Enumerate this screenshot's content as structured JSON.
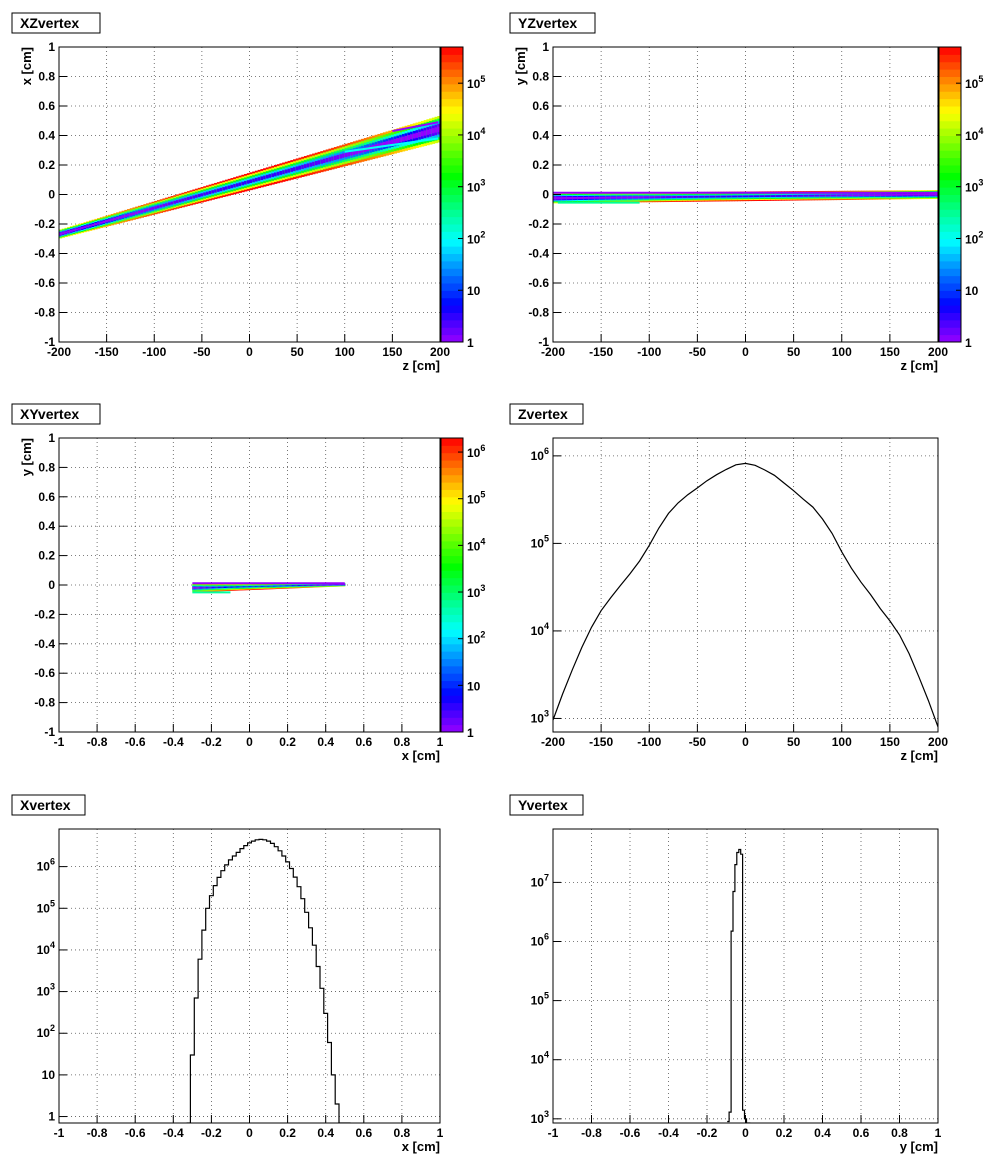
{
  "chart_data": [
    {
      "type": "heatmap",
      "title": "XZvertex",
      "xlabel": "z [cm]",
      "ylabel": "x [cm]",
      "xlim": [
        -200,
        200
      ],
      "ylim": [
        -1,
        1
      ],
      "x_ticks": [
        "-200",
        "-150",
        "-100",
        "-50",
        "0",
        "50",
        "100",
        "150",
        "200"
      ],
      "y_ticks": [
        "-1",
        "-0.8",
        "-0.6",
        "-0.4",
        "-0.2",
        "0",
        "0.2",
        "0.4",
        "0.6",
        "0.8",
        "1"
      ],
      "grid": true,
      "colorbar": {
        "scale": "log",
        "min": 1,
        "max": 500000,
        "labels": [
          "1",
          "10",
          "10^2",
          "10^3",
          "10^4",
          "10^5"
        ]
      },
      "band": {
        "x": [
          -200,
          200
        ],
        "y_center": [
          -0.27,
          0.445
        ],
        "y_half_width": [
          0.03,
          0.09
        ],
        "peak": 500000,
        "x_sigma": 75
      },
      "tracks": [
        {
          "x": [
            150,
            198
          ],
          "y": [
            0.43,
            0.49
          ],
          "level": 1
        },
        {
          "x": [
            100,
            198
          ],
          "y": [
            0.29,
            0.38
          ],
          "level": 100
        }
      ]
    },
    {
      "type": "heatmap",
      "title": "YZvertex",
      "xlabel": "z [cm]",
      "ylabel": "y [cm]",
      "xlim": [
        -200,
        200
      ],
      "ylim": [
        -1,
        1
      ],
      "x_ticks": [
        "-200",
        "-150",
        "-100",
        "-50",
        "0",
        "50",
        "100",
        "150",
        "200"
      ],
      "y_ticks": [
        "-1",
        "-0.8",
        "-0.6",
        "-0.4",
        "-0.2",
        "0",
        "0.2",
        "0.4",
        "0.6",
        "0.8",
        "1"
      ],
      "grid": true,
      "colorbar": {
        "scale": "log",
        "min": 1,
        "max": 500000,
        "labels": [
          "1",
          "10",
          "10^2",
          "10^3",
          "10^4",
          "10^5"
        ]
      },
      "band": {
        "x": [
          -200,
          200
        ],
        "y_center": [
          -0.025,
          0.0
        ],
        "y_half_width": [
          0.035,
          0.03
        ],
        "peak": 500000,
        "x_sigma": 75
      },
      "tracks": [
        {
          "x": [
            -200,
            200
          ],
          "y": [
            0.012,
            0.012
          ],
          "level": 1
        },
        {
          "x": [
            -195,
            -110
          ],
          "y": [
            -0.055,
            -0.055
          ],
          "level": 300
        }
      ]
    },
    {
      "type": "heatmap",
      "title": "XYvertex",
      "xlabel": "x [cm]",
      "ylabel": "y [cm]",
      "xlim": [
        -1,
        1
      ],
      "ylim": [
        -1,
        1
      ],
      "x_ticks": [
        "-1",
        "-0.8",
        "-0.6",
        "-0.4",
        "-0.2",
        "0",
        "0.2",
        "0.4",
        "0.6",
        "0.8",
        "1"
      ],
      "y_ticks": [
        "-1",
        "-0.8",
        "-0.6",
        "-0.4",
        "-0.2",
        "0",
        "0.2",
        "0.4",
        "0.6",
        "0.8",
        "1"
      ],
      "grid": true,
      "colorbar": {
        "scale": "log",
        "min": 1,
        "max": 2000000,
        "labels": [
          "1",
          "10",
          "10^2",
          "10^3",
          "10^4",
          "10^5",
          "10^6"
        ]
      },
      "band": {
        "x": [
          -0.3,
          0.5
        ],
        "y_center": [
          -0.02,
          0.003
        ],
        "y_half_width": [
          0.03,
          0.012
        ],
        "peak": 2000000,
        "x_sigma": 0.15,
        "x_center": 0.05
      },
      "tracks": [
        {
          "x": [
            -0.3,
            0.5
          ],
          "y": [
            0.012,
            0.012
          ],
          "level": 1
        },
        {
          "x": [
            -0.3,
            -0.1
          ],
          "y": [
            -0.05,
            -0.05
          ],
          "level": 500
        }
      ]
    },
    {
      "type": "line",
      "title": "Zvertex",
      "xlabel": "z [cm]",
      "ylabel": "",
      "xlim": [
        -200,
        200
      ],
      "ylim": [
        700,
        1600000
      ],
      "yscale": "log",
      "x_ticks": [
        "-200",
        "-150",
        "-100",
        "-50",
        "0",
        "50",
        "100",
        "150",
        "200"
      ],
      "y_ticks": [
        "10^3",
        "10^4",
        "10^5",
        "10^6"
      ],
      "grid": true,
      "series": [
        {
          "x": [
            -200,
            -190,
            -180,
            -170,
            -160,
            -150,
            -140,
            -130,
            -120,
            -110,
            -100,
            -90,
            -80,
            -70,
            -60,
            -50,
            -40,
            -30,
            -20,
            -10,
            0,
            10,
            20,
            30,
            40,
            50,
            60,
            70,
            80,
            90,
            100,
            110,
            120,
            130,
            140,
            150,
            160,
            170,
            180,
            190,
            200
          ],
          "values": [
            960,
            1900,
            3600,
            6500,
            11000,
            17000,
            24000,
            33000,
            45000,
            63000,
            95000,
            150000,
            220000,
            290000,
            360000,
            430000,
            520000,
            610000,
            700000,
            790000,
            820000,
            780000,
            690000,
            600000,
            490000,
            400000,
            320000,
            260000,
            190000,
            130000,
            80000,
            52000,
            36000,
            26000,
            18000,
            13000,
            9000,
            5500,
            3000,
            1600,
            800
          ]
        }
      ]
    },
    {
      "type": "bar",
      "subtype": "histogram-step",
      "title": "Xvertex",
      "xlabel": "x [cm]",
      "ylabel": "",
      "xlim": [
        -1,
        1
      ],
      "ylim": [
        0.7,
        8000000
      ],
      "yscale": "log",
      "x_ticks": [
        "-1",
        "-0.8",
        "-0.6",
        "-0.4",
        "-0.2",
        "0",
        "0.2",
        "0.4",
        "0.6",
        "0.8",
        "1"
      ],
      "y_ticks": [
        "1",
        "10",
        "10^2",
        "10^3",
        "10^4",
        "10^5",
        "10^6"
      ],
      "grid": true,
      "series": [
        {
          "x": [
            -0.32,
            -0.3,
            -0.28,
            -0.26,
            -0.24,
            -0.22,
            -0.2,
            -0.18,
            -0.16,
            -0.14,
            -0.12,
            -0.1,
            -0.08,
            -0.06,
            -0.04,
            -0.02,
            0,
            0.02,
            0.04,
            0.06,
            0.08,
            0.1,
            0.12,
            0.14,
            0.16,
            0.18,
            0.2,
            0.22,
            0.24,
            0.26,
            0.28,
            0.3,
            0.32,
            0.34,
            0.36,
            0.38,
            0.4,
            0.42,
            0.44,
            0.46,
            0.48,
            0.5,
            0.52
          ],
          "values": [
            0.7,
            30,
            700,
            6000,
            30000,
            100000,
            200000,
            350000,
            550000,
            800000,
            1100000,
            1450000,
            1800000,
            2200000,
            2700000,
            3200000,
            3700000,
            4100000,
            4400000,
            4500000,
            4400000,
            4100000,
            3600000,
            3000000,
            2400000,
            1800000,
            1300000,
            900000,
            560000,
            330000,
            170000,
            80000,
            34000,
            13000,
            4000,
            1200,
            300,
            60,
            10,
            2,
            0.7,
            0.7,
            0.7
          ]
        }
      ]
    },
    {
      "type": "bar",
      "subtype": "histogram-step",
      "title": "Yvertex",
      "xlabel": "y [cm]",
      "ylabel": "",
      "xlim": [
        -1,
        1
      ],
      "ylim": [
        850,
        80000000
      ],
      "yscale": "log",
      "x_ticks": [
        "-1",
        "-0.8",
        "-0.6",
        "-0.4",
        "-0.2",
        "0",
        "0.2",
        "0.4",
        "0.6",
        "0.8",
        "1"
      ],
      "y_ticks": [
        "10^3",
        "10^4",
        "10^5",
        "10^6",
        "10^7"
      ],
      "grid": true,
      "series": [
        {
          "x": [
            -0.09,
            -0.08,
            -0.07,
            -0.06,
            -0.05,
            -0.04,
            -0.03,
            -0.02,
            -0.01,
            0,
            0.01,
            0.02
          ],
          "values": [
            900,
            1300,
            1500000,
            7000000,
            20000000,
            32000000,
            36000000,
            30000000,
            1400,
            1000,
            850,
            850
          ]
        }
      ]
    }
  ]
}
